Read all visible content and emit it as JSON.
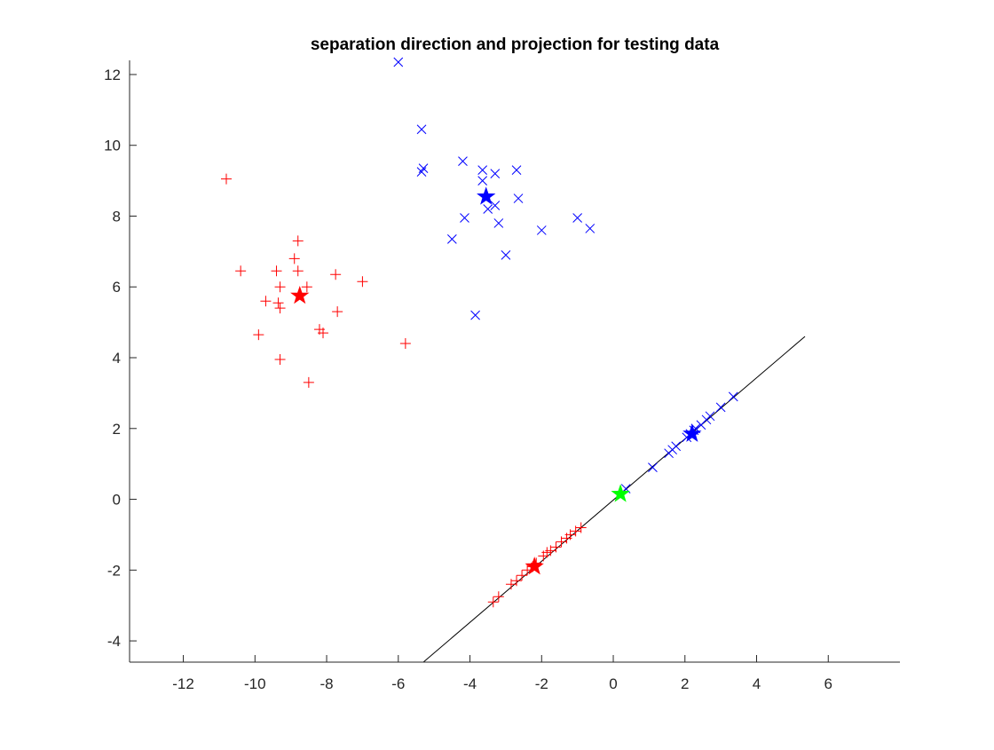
{
  "chart_data": {
    "type": "scatter",
    "title": "separation direction and projection for testing data",
    "xlabel": "",
    "ylabel": "",
    "xlim": [
      -13.5,
      8
    ],
    "ylim": [
      -4.6,
      12.4
    ],
    "xticks": [
      -12,
      -10,
      -8,
      -6,
      -4,
      -2,
      0,
      2,
      4,
      6
    ],
    "yticks": [
      -4,
      -2,
      0,
      2,
      4,
      6,
      8,
      10,
      12
    ],
    "grid": false,
    "legend": "none",
    "colors": {
      "class_a": "#ff0000",
      "class_b": "#0000ff",
      "threshold": "#00ff00",
      "line": "#000000",
      "axis": "#262626"
    },
    "series": [
      {
        "marker": "plus",
        "color": "#ff0000",
        "points": [
          [
            -10.8,
            9.05
          ],
          [
            -10.4,
            6.45
          ],
          [
            -9.4,
            6.45
          ],
          [
            -9.3,
            6.0
          ],
          [
            -9.35,
            5.55
          ],
          [
            -9.3,
            5.4
          ],
          [
            -9.7,
            5.6
          ],
          [
            -9.9,
            4.65
          ],
          [
            -9.3,
            3.95
          ],
          [
            -8.8,
            7.3
          ],
          [
            -8.9,
            6.8
          ],
          [
            -8.8,
            6.45
          ],
          [
            -8.55,
            6.0
          ],
          [
            -8.2,
            4.8
          ],
          [
            -8.1,
            4.7
          ],
          [
            -8.5,
            3.3
          ],
          [
            -7.75,
            6.35
          ],
          [
            -7.7,
            5.3
          ],
          [
            -7.0,
            6.15
          ],
          [
            -5.8,
            4.4
          ]
        ]
      },
      {
        "marker": "x",
        "color": "#0000ff",
        "points": [
          [
            -6.0,
            12.35
          ],
          [
            -5.35,
            10.45
          ],
          [
            -5.3,
            9.35
          ],
          [
            -5.35,
            9.25
          ],
          [
            -4.2,
            9.55
          ],
          [
            -3.65,
            9.3
          ],
          [
            -3.65,
            9.0
          ],
          [
            -3.3,
            9.2
          ],
          [
            -2.7,
            9.3
          ],
          [
            -2.65,
            8.5
          ],
          [
            -3.5,
            8.2
          ],
          [
            -3.3,
            8.3
          ],
          [
            -4.15,
            7.95
          ],
          [
            -3.2,
            7.8
          ],
          [
            -4.5,
            7.35
          ],
          [
            -3.0,
            6.9
          ],
          [
            -2.0,
            7.6
          ],
          [
            -1.0,
            7.95
          ],
          [
            -0.65,
            7.65
          ],
          [
            -3.85,
            5.2
          ]
        ]
      },
      {
        "marker": "plus",
        "color": "#ff0000",
        "points": [
          [
            -3.35,
            -2.9
          ],
          [
            -3.2,
            -2.75
          ],
          [
            -2.85,
            -2.4
          ],
          [
            -2.7,
            -2.3
          ],
          [
            -2.55,
            -2.15
          ],
          [
            -2.4,
            -2.0
          ],
          [
            -2.25,
            -1.9
          ],
          [
            -2.15,
            -1.8
          ],
          [
            -1.95,
            -1.6
          ],
          [
            -1.85,
            -1.5
          ],
          [
            -1.75,
            -1.45
          ],
          [
            -1.6,
            -1.35
          ],
          [
            -1.45,
            -1.2
          ],
          [
            -1.3,
            -1.1
          ],
          [
            -1.2,
            -1.0
          ],
          [
            -1.05,
            -0.9
          ],
          [
            -0.9,
            -0.8
          ]
        ]
      },
      {
        "marker": "x",
        "color": "#0000ff",
        "points": [
          [
            0.35,
            0.3
          ],
          [
            1.1,
            0.9
          ],
          [
            1.55,
            1.3
          ],
          [
            1.65,
            1.4
          ],
          [
            1.75,
            1.5
          ],
          [
            2.05,
            1.75
          ],
          [
            2.15,
            1.85
          ],
          [
            2.25,
            1.95
          ],
          [
            2.3,
            2.0
          ],
          [
            2.45,
            2.1
          ],
          [
            2.6,
            2.25
          ],
          [
            2.7,
            2.35
          ],
          [
            3.0,
            2.6
          ],
          [
            3.35,
            2.9
          ]
        ]
      }
    ],
    "centroids": [
      {
        "x": -8.75,
        "y": 5.75,
        "color": "#ff0000"
      },
      {
        "x": -3.55,
        "y": 8.55,
        "color": "#0000ff"
      },
      {
        "x": -2.2,
        "y": -1.9,
        "color": "#ff0000"
      },
      {
        "x": 2.2,
        "y": 1.85,
        "color": "#0000ff"
      },
      {
        "x": 0.2,
        "y": 0.15,
        "color": "#00ff00"
      }
    ],
    "direction_line": {
      "x": [
        -5.3,
        5.35
      ],
      "y": [
        -4.6,
        4.6
      ]
    }
  }
}
